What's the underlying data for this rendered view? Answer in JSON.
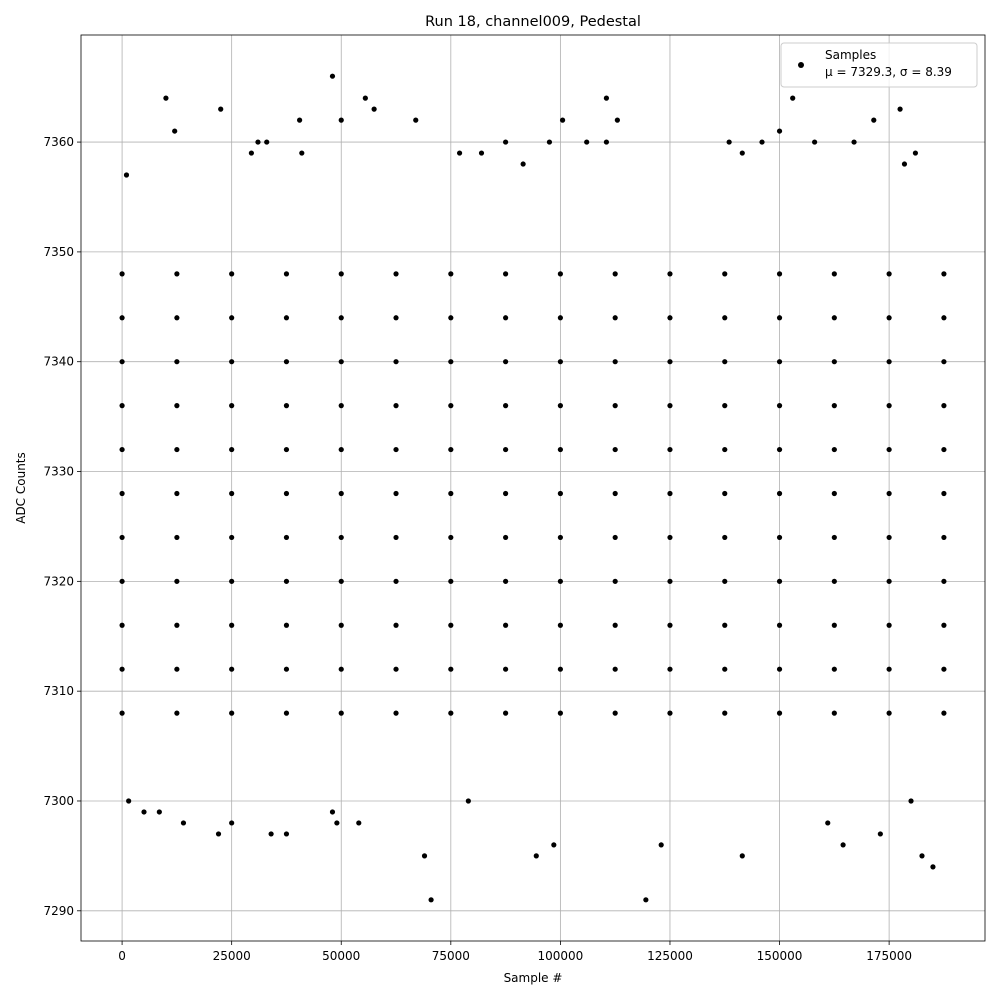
{
  "chart_data": {
    "type": "scatter",
    "title": "Run 18, channel009, Pedestal",
    "x_label": "Sample #",
    "y_label": "ADC Counts",
    "xlim": [
      -9375,
      196875
    ],
    "ylim": [
      7287.25,
      7369.75
    ],
    "xticks": [
      0,
      25000,
      50000,
      75000,
      100000,
      125000,
      150000,
      175000
    ],
    "yticks": [
      7290,
      7300,
      7310,
      7320,
      7330,
      7340,
      7350,
      7360
    ],
    "grid": true,
    "legend_position": "upper right",
    "series": [
      {
        "name": "Samples",
        "label_detail": "μ = 7329.3, σ = 8.39",
        "color": "#000000",
        "x": [
          0,
          12500,
          25000,
          37500,
          50000,
          62500,
          75000,
          87500,
          100000,
          112500,
          125000,
          137500,
          150000,
          162500,
          175000,
          187500,
          0,
          12500,
          25000,
          37500,
          50000,
          62500,
          75000,
          87500,
          100000,
          112500,
          125000,
          137500,
          150000,
          162500,
          175000,
          187500,
          0,
          12500,
          25000,
          37500,
          50000,
          62500,
          75000,
          87500,
          100000,
          112500,
          125000,
          137500,
          150000,
          162500,
          175000,
          187500,
          0,
          12500,
          25000,
          37500,
          50000,
          62500,
          75000,
          87500,
          100000,
          112500,
          125000,
          137500,
          150000,
          162500,
          175000,
          187500,
          0,
          12500,
          25000,
          37500,
          50000,
          62500,
          75000,
          87500,
          100000,
          112500,
          125000,
          137500,
          150000,
          162500,
          175000,
          187500,
          0,
          12500,
          25000,
          37500,
          50000,
          62500,
          75000,
          87500,
          100000,
          112500,
          125000,
          137500,
          150000,
          162500,
          175000,
          187500,
          0,
          12500,
          25000,
          37500,
          50000,
          62500,
          75000,
          87500,
          100000,
          112500,
          125000,
          137500,
          150000,
          162500,
          175000,
          187500,
          0,
          12500,
          25000,
          37500,
          50000,
          62500,
          75000,
          87500,
          100000,
          112500,
          125000,
          137500,
          150000,
          162500,
          175000,
          187500,
          0,
          12500,
          25000,
          37500,
          50000,
          62500,
          75000,
          87500,
          100000,
          112500,
          125000,
          137500,
          150000,
          162500,
          175000,
          187500,
          0,
          12500,
          25000,
          37500,
          50000,
          62500,
          75000,
          87500,
          100000,
          112500,
          125000,
          137500,
          150000,
          162500,
          175000,
          187500,
          0,
          12500,
          25000,
          37500,
          50000,
          62500,
          75000,
          87500,
          100000,
          112500,
          125000,
          137500,
          150000,
          162500,
          175000,
          187500,
          10000,
          12000,
          22500,
          48000,
          55500,
          57500,
          40500,
          67000,
          100500,
          110500,
          113000,
          150000,
          153000,
          171500,
          177500,
          50000,
          22000,
          14000,
          25000,
          34000,
          37500,
          48000,
          49000,
          54000,
          69000,
          70500,
          94500,
          98500,
          119500,
          123000,
          141500,
          164500,
          173000,
          182500,
          185000,
          1500,
          8500,
          5000,
          79000,
          161000,
          180000,
          1000,
          29500,
          31000,
          33000,
          41000,
          77000,
          82000,
          87500,
          91500,
          97500,
          106000,
          110500,
          138500,
          141500,
          146000,
          158000,
          167000,
          178500,
          181000
        ],
        "values": [
          7308,
          7308,
          7308,
          7308,
          7308,
          7308,
          7308,
          7308,
          7308,
          7308,
          7308,
          7308,
          7308,
          7308,
          7308,
          7308,
          7312,
          7312,
          7312,
          7312,
          7312,
          7312,
          7312,
          7312,
          7312,
          7312,
          7312,
          7312,
          7312,
          7312,
          7312,
          7312,
          7316,
          7316,
          7316,
          7316,
          7316,
          7316,
          7316,
          7316,
          7316,
          7316,
          7316,
          7316,
          7316,
          7316,
          7316,
          7316,
          7320,
          7320,
          7320,
          7320,
          7320,
          7320,
          7320,
          7320,
          7320,
          7320,
          7320,
          7320,
          7320,
          7320,
          7320,
          7320,
          7324,
          7324,
          7324,
          7324,
          7324,
          7324,
          7324,
          7324,
          7324,
          7324,
          7324,
          7324,
          7324,
          7324,
          7324,
          7324,
          7328,
          7328,
          7328,
          7328,
          7328,
          7328,
          7328,
          7328,
          7328,
          7328,
          7328,
          7328,
          7328,
          7328,
          7328,
          7328,
          7332,
          7332,
          7332,
          7332,
          7332,
          7332,
          7332,
          7332,
          7332,
          7332,
          7332,
          7332,
          7332,
          7332,
          7332,
          7332,
          7336,
          7336,
          7336,
          7336,
          7336,
          7336,
          7336,
          7336,
          7336,
          7336,
          7336,
          7336,
          7336,
          7336,
          7336,
          7336,
          7340,
          7340,
          7340,
          7340,
          7340,
          7340,
          7340,
          7340,
          7340,
          7340,
          7340,
          7340,
          7340,
          7340,
          7340,
          7340,
          7344,
          7344,
          7344,
          7344,
          7344,
          7344,
          7344,
          7344,
          7344,
          7344,
          7344,
          7344,
          7344,
          7344,
          7344,
          7344,
          7348,
          7348,
          7348,
          7348,
          7348,
          7348,
          7348,
          7348,
          7348,
          7348,
          7348,
          7348,
          7348,
          7348,
          7348,
          7348,
          7364,
          7361,
          7363,
          7366,
          7364,
          7363,
          7362,
          7362,
          7362,
          7364,
          7362,
          7361,
          7364,
          7362,
          7363,
          7362,
          7297,
          7298,
          7298,
          7297,
          7297,
          7299,
          7298,
          7298,
          7295,
          7291,
          7295,
          7296,
          7291,
          7296,
          7295,
          7296,
          7297,
          7295,
          7294,
          7300,
          7299,
          7299,
          7300,
          7298,
          7300,
          7357,
          7359,
          7360,
          7360,
          7359,
          7359,
          7359,
          7360,
          7358,
          7360,
          7360,
          7360,
          7360,
          7359,
          7360,
          7360,
          7360,
          7358,
          7359
        ]
      }
    ]
  }
}
